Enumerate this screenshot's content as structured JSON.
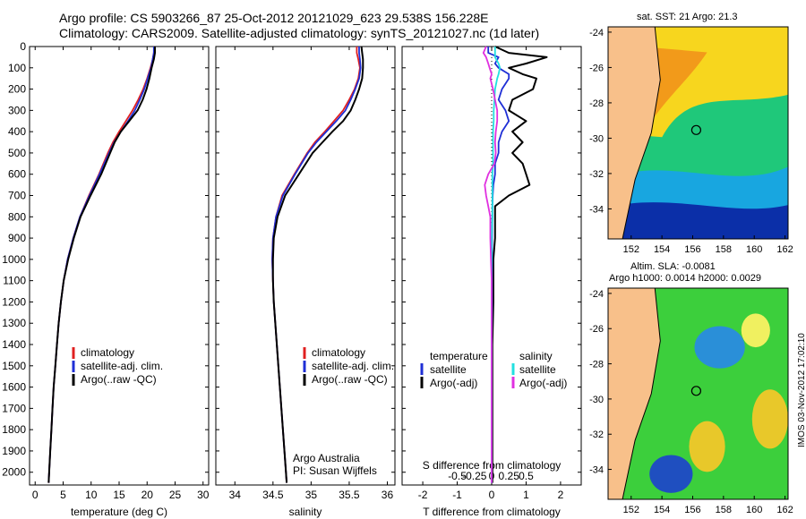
{
  "title": {
    "line1": "Argo profile: CS 5903266_87 25-Oct-2012 20121029_623 29.538S 156.228E",
    "line2": "Climatology: CARS2009. Satellite-adjusted climatology: synTS_20121027.nc (1d later)"
  },
  "colors": {
    "climatology": "#e02020",
    "satellite": "#1f2fd6",
    "argo": "#000000",
    "sat_diff": "#22e0e0",
    "argo_sal_diff": "#e030e0"
  },
  "depth_axis": {
    "ticks": [
      "0",
      "100",
      "200",
      "300",
      "400",
      "500",
      "600",
      "700",
      "800",
      "900",
      "1000",
      "1100",
      "1200",
      "1300",
      "1400",
      "1500",
      "1600",
      "1700",
      "1800",
      "1900",
      "2000"
    ],
    "range": [
      0,
      2060
    ]
  },
  "chart_data": [
    {
      "id": "temperature",
      "type": "line",
      "xlabel": "temperature (deg C)",
      "xlim": [
        -1,
        31
      ],
      "xticks": [
        "0",
        "5",
        "10",
        "15",
        "20",
        "25",
        "30"
      ],
      "depth": [
        0,
        30,
        60,
        100,
        150,
        200,
        250,
        300,
        350,
        400,
        450,
        500,
        600,
        700,
        800,
        900,
        1000,
        1100,
        1200,
        1300,
        1400,
        1500,
        1600,
        1700,
        1800,
        1900,
        2000,
        2050
      ],
      "series": [
        {
          "name": "climatology",
          "values": [
            21.3,
            21.2,
            21.0,
            20.6,
            20.0,
            19.3,
            18.4,
            17.4,
            16.2,
            15.0,
            13.9,
            13.0,
            11.4,
            9.6,
            8.0,
            6.8,
            5.8,
            5.1,
            4.6,
            4.2,
            3.9,
            3.6,
            3.3,
            3.1,
            2.9,
            2.7,
            2.5,
            2.4
          ]
        },
        {
          "name": "satellite-adj. clim.",
          "values": [
            21.2,
            21.2,
            21.0,
            20.7,
            20.1,
            19.5,
            18.7,
            17.8,
            16.6,
            15.3,
            14.1,
            13.2,
            11.5,
            9.7,
            8.0,
            6.8,
            5.8,
            5.1,
            4.6,
            4.2,
            3.9,
            3.6,
            3.3,
            3.1,
            2.9,
            2.7,
            2.5,
            2.4
          ]
        },
        {
          "name": "Argo(..raw -QC)",
          "values": [
            21.4,
            21.4,
            21.2,
            20.8,
            20.4,
            19.9,
            19.2,
            18.3,
            16.8,
            15.3,
            14.2,
            13.4,
            11.8,
            9.9,
            8.1,
            6.9,
            5.9,
            5.1,
            4.6,
            4.2,
            3.9,
            3.6,
            3.3,
            3.1,
            2.9,
            2.7,
            2.5,
            2.4
          ]
        }
      ],
      "legend": [
        "climatology",
        "satellite-adj. clim.",
        "Argo(..raw -QC)"
      ]
    },
    {
      "id": "salinity",
      "type": "line",
      "xlabel": "salinity",
      "xlim": [
        33.75,
        36.1
      ],
      "xticks": [
        "34",
        "34.5",
        "35",
        "35.5",
        "36"
      ],
      "depth": [
        0,
        30,
        60,
        100,
        150,
        200,
        250,
        300,
        350,
        400,
        450,
        500,
        600,
        700,
        800,
        900,
        1000,
        1100,
        1200,
        1300,
        1400,
        1500,
        1600,
        1700,
        1800,
        1900,
        2000,
        2050
      ],
      "series": [
        {
          "name": "climatology",
          "values": [
            35.6,
            35.6,
            35.62,
            35.64,
            35.62,
            35.57,
            35.5,
            35.42,
            35.3,
            35.18,
            35.05,
            34.95,
            34.78,
            34.62,
            34.54,
            34.5,
            34.49,
            34.5,
            34.51,
            34.53,
            34.55,
            34.57,
            34.59,
            34.61,
            34.63,
            34.65,
            34.67,
            34.68
          ]
        },
        {
          "name": "satellite-adj. clim.",
          "values": [
            35.63,
            35.63,
            35.64,
            35.65,
            35.63,
            35.58,
            35.52,
            35.45,
            35.33,
            35.2,
            35.07,
            34.96,
            34.79,
            34.63,
            34.54,
            34.5,
            34.49,
            34.5,
            34.51,
            34.53,
            34.55,
            34.57,
            34.59,
            34.61,
            34.63,
            34.65,
            34.67,
            34.68
          ]
        },
        {
          "name": "Argo(..raw -QC)",
          "values": [
            35.66,
            35.67,
            35.68,
            35.68,
            35.67,
            35.63,
            35.58,
            35.52,
            35.42,
            35.28,
            35.15,
            35.02,
            34.84,
            34.66,
            34.56,
            34.51,
            34.5,
            34.5,
            34.51,
            34.53,
            34.55,
            34.57,
            34.59,
            34.61,
            34.63,
            34.65,
            34.67,
            34.68
          ]
        }
      ],
      "legend": [
        "climatology",
        "satellite-adj. clim.",
        "Argo(..raw -QC)"
      ],
      "note": [
        "Argo Australia",
        "PI: Susan Wijffels"
      ]
    },
    {
      "id": "difference",
      "type": "line",
      "xlabel_bottom": "T difference from climatology",
      "xlabel_top": "S difference from climatology",
      "xlim": [
        -2.6,
        2.6
      ],
      "xticks_T": [
        "-2",
        "-1",
        "0",
        "1",
        "2"
      ],
      "xticks_S": [
        "-0.5",
        "-0.25",
        "0",
        "0.25",
        "0.5"
      ],
      "depth": [
        0,
        30,
        50,
        80,
        100,
        130,
        150,
        200,
        250,
        300,
        350,
        400,
        450,
        500,
        550,
        600,
        650,
        700,
        750,
        800,
        900,
        1000,
        1100,
        1200,
        1400,
        1600,
        1800,
        2000,
        2050
      ],
      "series": [
        {
          "name": "temperature Argo(-adj)",
          "values": [
            0.1,
            0.5,
            1.6,
            1.0,
            0.5,
            0.9,
            1.3,
            1.2,
            0.6,
            0.5,
            1.0,
            0.6,
            0.9,
            0.6,
            0.9,
            1.0,
            1.1,
            0.5,
            0.1,
            0.1,
            0.1,
            0.05,
            0.05,
            0.05,
            0.02,
            0.02,
            0.02,
            0.02,
            0.02
          ]
        },
        {
          "name": "temperature satellite",
          "values": [
            -0.1,
            -0.1,
            0.2,
            0.1,
            0.2,
            0.5,
            0.5,
            0.3,
            0.2,
            0.4,
            0.5,
            0.3,
            0.2,
            0.2,
            0.1,
            0.1,
            0.05,
            0.03,
            0.02,
            0.02,
            0.01,
            0.01,
            0.01,
            0.01,
            0.0,
            0.0,
            0.0,
            0.0,
            0.0
          ]
        },
        {
          "name": "salinity satellite",
          "values": [
            0.05,
            0.05,
            0.05,
            0.1,
            0.12,
            0.1,
            0.08,
            0.05,
            0.04,
            0.03,
            0.03,
            0.02,
            0.02,
            0.02,
            0.02,
            0.01,
            0.01,
            0.01,
            0.01,
            0.01,
            0.0,
            0.0,
            0.0,
            0.0,
            0.0,
            0.0,
            0.0,
            0.0,
            0.0
          ]
        },
        {
          "name": "salinity Argo(-adj)",
          "values": [
            -0.08,
            -0.12,
            -0.08,
            -0.05,
            -0.03,
            0.0,
            -0.02,
            0.02,
            0.05,
            0.08,
            0.08,
            0.06,
            0.05,
            0.06,
            0.04,
            -0.05,
            -0.1,
            -0.08,
            -0.05,
            -0.02,
            -0.02,
            -0.01,
            0.0,
            0.0,
            0.0,
            0.0,
            0.0,
            0.0,
            0.0
          ]
        }
      ],
      "legend_left_title": "temperature",
      "legend_right_title": "salinity",
      "legend_left": [
        "satellite",
        "Argo(-adj)"
      ],
      "legend_right": [
        "satellite",
        "Argo(-adj)"
      ]
    }
  ],
  "maps": {
    "sst_title": "sat. SST: 21 Argo: 21.3",
    "sla_title_1": "Altim. SLA: -0.0081",
    "sla_title_2": "Argo h1000: 0.0014 h2000: 0.0029",
    "lat_ticks": [
      "-24",
      "-26",
      "-28",
      "-30",
      "-32",
      "-34"
    ],
    "lon_ticks": [
      "152",
      "154",
      "156",
      "158",
      "160",
      "162"
    ],
    "profile_lon": 156.228,
    "profile_lat": -29.538,
    "lon_range": [
      150.5,
      162.2
    ],
    "lat_range": [
      -35.7,
      -23.7
    ]
  },
  "stamp": "IMOS 03-Nov-2012 17:02:10"
}
